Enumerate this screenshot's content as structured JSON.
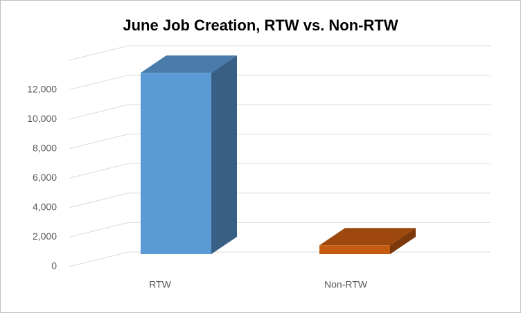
{
  "chart_data": {
    "type": "bar3d",
    "title": "June Job Creation, RTW vs. Non-RTW",
    "categories": [
      "RTW",
      "Non-RTW"
    ],
    "values": [
      12300,
      600
    ],
    "colors": [
      "#5b9bd5",
      "#c55a11"
    ],
    "ylim": [
      0,
      14000
    ],
    "yticks": [
      0,
      {
        "value": 2000,
        "label": "2,000"
      },
      {
        "value": 4000,
        "label": "4,000"
      },
      {
        "value": 6000,
        "label": "6,000"
      },
      {
        "value": 8000,
        "label": "8,000"
      },
      {
        "value": 10000,
        "label": "10,000"
      },
      {
        "value": 12000,
        "label": "12,000"
      }
    ],
    "grid": true
  }
}
